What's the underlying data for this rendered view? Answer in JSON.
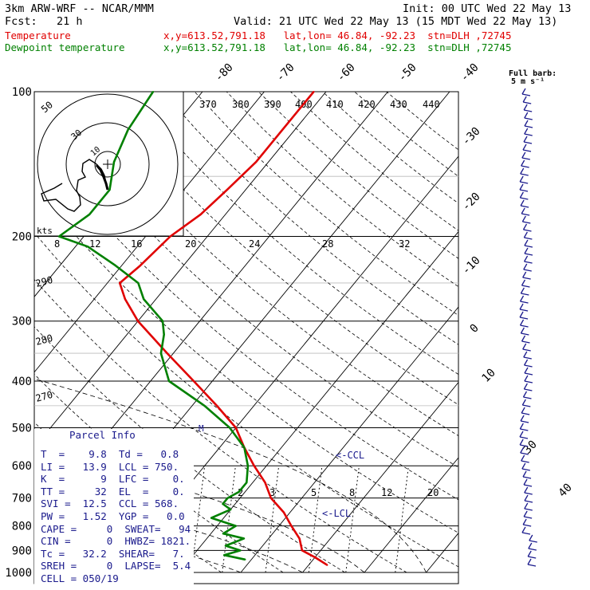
{
  "header": {
    "model": "3km ARW-WRF -- NCAR/MMM",
    "init": "Init: 00 UTC Wed 22 May 13",
    "fcst": "Fcst:   21 h",
    "valid": "Valid: 21 UTC Wed 22 May 13 (15 MDT Wed 22 May 13)",
    "temp_label": "Temperature",
    "temp_loc": "x,y=613.52,791.18   lat,lon= 46.84, -92.23  stn=DLH ,72745",
    "dew_label": "Dewpoint temperature",
    "dew_loc": "x,y=613.52,791.18   lat,lon= 46.84, -92.23  stn=DLH ,72745"
  },
  "barb_legend": {
    "line1": "Full barb:",
    "line2": "5 m s⁻¹"
  },
  "parcel_info": {
    "title": "Parcel Info",
    "rows": [
      "T  =    9.8  Td =   0.8",
      "LI =   13.9  LCL = 750.",
      "K  =      9  LFC =    0.",
      "TT =     32  EL  =    0.",
      "SVI =  12.5  CCL = 568.",
      "PW =   1.52  YGP =   0.0",
      "CAPE =     0  SWEAT=   94",
      "CIN =      0  HWBZ= 1821.",
      "Tc =   32.2  SHEAR=   7.",
      "SREH =     0  LAPSE=  5.4",
      "CELL = 050/19"
    ]
  },
  "labels": {
    "ccl": "<-CCL",
    "lcl": "<-LCL",
    "kts": "kts",
    "m": "M"
  },
  "colors": {
    "temperature": "#e00000",
    "dewpoint": "#008000",
    "text": "#1a1a8c"
  },
  "chart_data": {
    "type": "line",
    "subtype": "skew-T log-p",
    "y_axis": {
      "label": "pressure (hPa)",
      "ticks": [
        100,
        200,
        300,
        400,
        500,
        600,
        700,
        800,
        900,
        1000
      ],
      "scale": "log",
      "reversed": true
    },
    "isotherm_labels": [
      "-80",
      "-70",
      "-60",
      "-50",
      "-40",
      "-30",
      "-20",
      "-10",
      "0",
      "10",
      "20",
      "30",
      "40"
    ],
    "dry_adiabat_labels": [
      "370",
      "380",
      "390",
      "400",
      "410",
      "420",
      "430",
      "440",
      "290",
      "280",
      "270"
    ],
    "mixing_ratio_labels": [
      "2",
      "3",
      "5",
      "8",
      "12",
      "20"
    ],
    "hodograph": {
      "speed_rings": [
        "10",
        "30",
        "50"
      ],
      "x_labels": [
        "8",
        "12",
        "16",
        "20",
        "24",
        "28",
        "32"
      ]
    },
    "series": [
      {
        "name": "Temperature",
        "pressure": [
          965,
          930,
          900,
          850,
          800,
          750,
          700,
          650,
          600,
          550,
          500,
          450,
          400,
          350,
          300,
          270,
          250,
          230,
          200,
          180,
          160,
          140,
          120,
          100
        ],
        "temperature": [
          13,
          10,
          7,
          5,
          2,
          -1,
          -5,
          -8,
          -12,
          -16,
          -20,
          -26,
          -33,
          -41,
          -50,
          -55,
          -58,
          -57,
          -56,
          -54,
          -53,
          -52,
          -52,
          -52
        ]
      },
      {
        "name": "Dewpoint temperature",
        "pressure": [
          940,
          920,
          900,
          880,
          850,
          830,
          800,
          770,
          740,
          720,
          700,
          680,
          650,
          600,
          550,
          500,
          450,
          400,
          350,
          320,
          300,
          270,
          250,
          230,
          210,
          200,
          180,
          160,
          140,
          120,
          100
        ],
        "temperature": [
          -1,
          -5,
          -3,
          -6,
          -4,
          -8,
          -7,
          -12,
          -10,
          -12,
          -12,
          -11,
          -11,
          -13,
          -16,
          -21,
          -28,
          -37,
          -42,
          -44,
          -46,
          -52,
          -55,
          -61,
          -68,
          -74,
          -72,
          -72,
          -75,
          -77,
          -78
        ]
      }
    ]
  }
}
